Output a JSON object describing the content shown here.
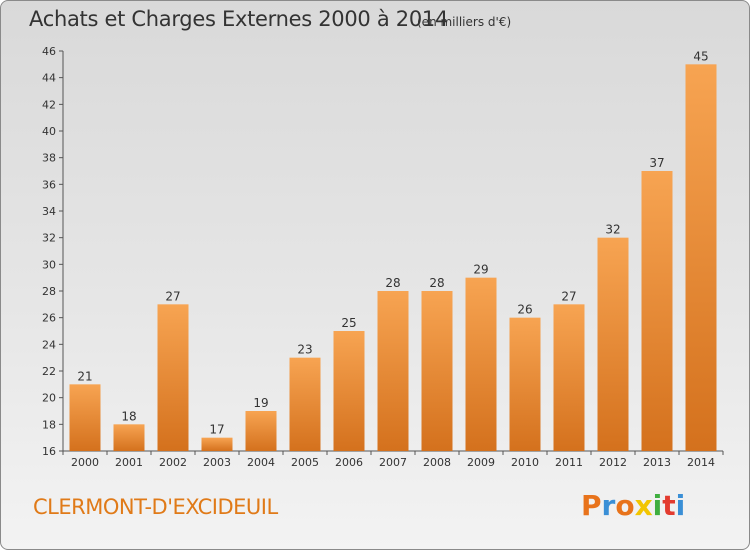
{
  "header": {
    "title": "Achats et Charges Externes 2000 à 2014",
    "subtitle": "(en milliers d'€)"
  },
  "footer": {
    "commune": "CLERMONT-D'EXCIDEUIL",
    "logo": [
      "P",
      "r",
      "o",
      "x",
      "i",
      "t",
      "i"
    ],
    "logo_colors": [
      "#e8731b",
      "#3a8fd6",
      "#e8731b",
      "#f2c500",
      "#3fae3f",
      "#e33b2f",
      "#3a8fd6"
    ]
  },
  "colors": {
    "bar_light": "#f7a452",
    "bar_dark": "#d4711d",
    "axis": "#555555"
  },
  "chart_data": {
    "type": "bar",
    "title": "Achats et Charges Externes 2000 à 2014",
    "subtitle": "(en milliers d'€)",
    "xlabel": "",
    "ylabel": "",
    "categories": [
      "2000",
      "2001",
      "2002",
      "2003",
      "2004",
      "2005",
      "2006",
      "2007",
      "2008",
      "2009",
      "2010",
      "2011",
      "2012",
      "2013",
      "2014"
    ],
    "values": [
      21,
      18,
      27,
      17,
      19,
      23,
      25,
      28,
      28,
      29,
      26,
      27,
      32,
      37,
      45
    ],
    "ylim": [
      16,
      46
    ],
    "yticks": [
      16,
      18,
      20,
      22,
      24,
      26,
      28,
      30,
      32,
      34,
      36,
      38,
      40,
      42,
      44,
      46
    ],
    "grid": false
  }
}
